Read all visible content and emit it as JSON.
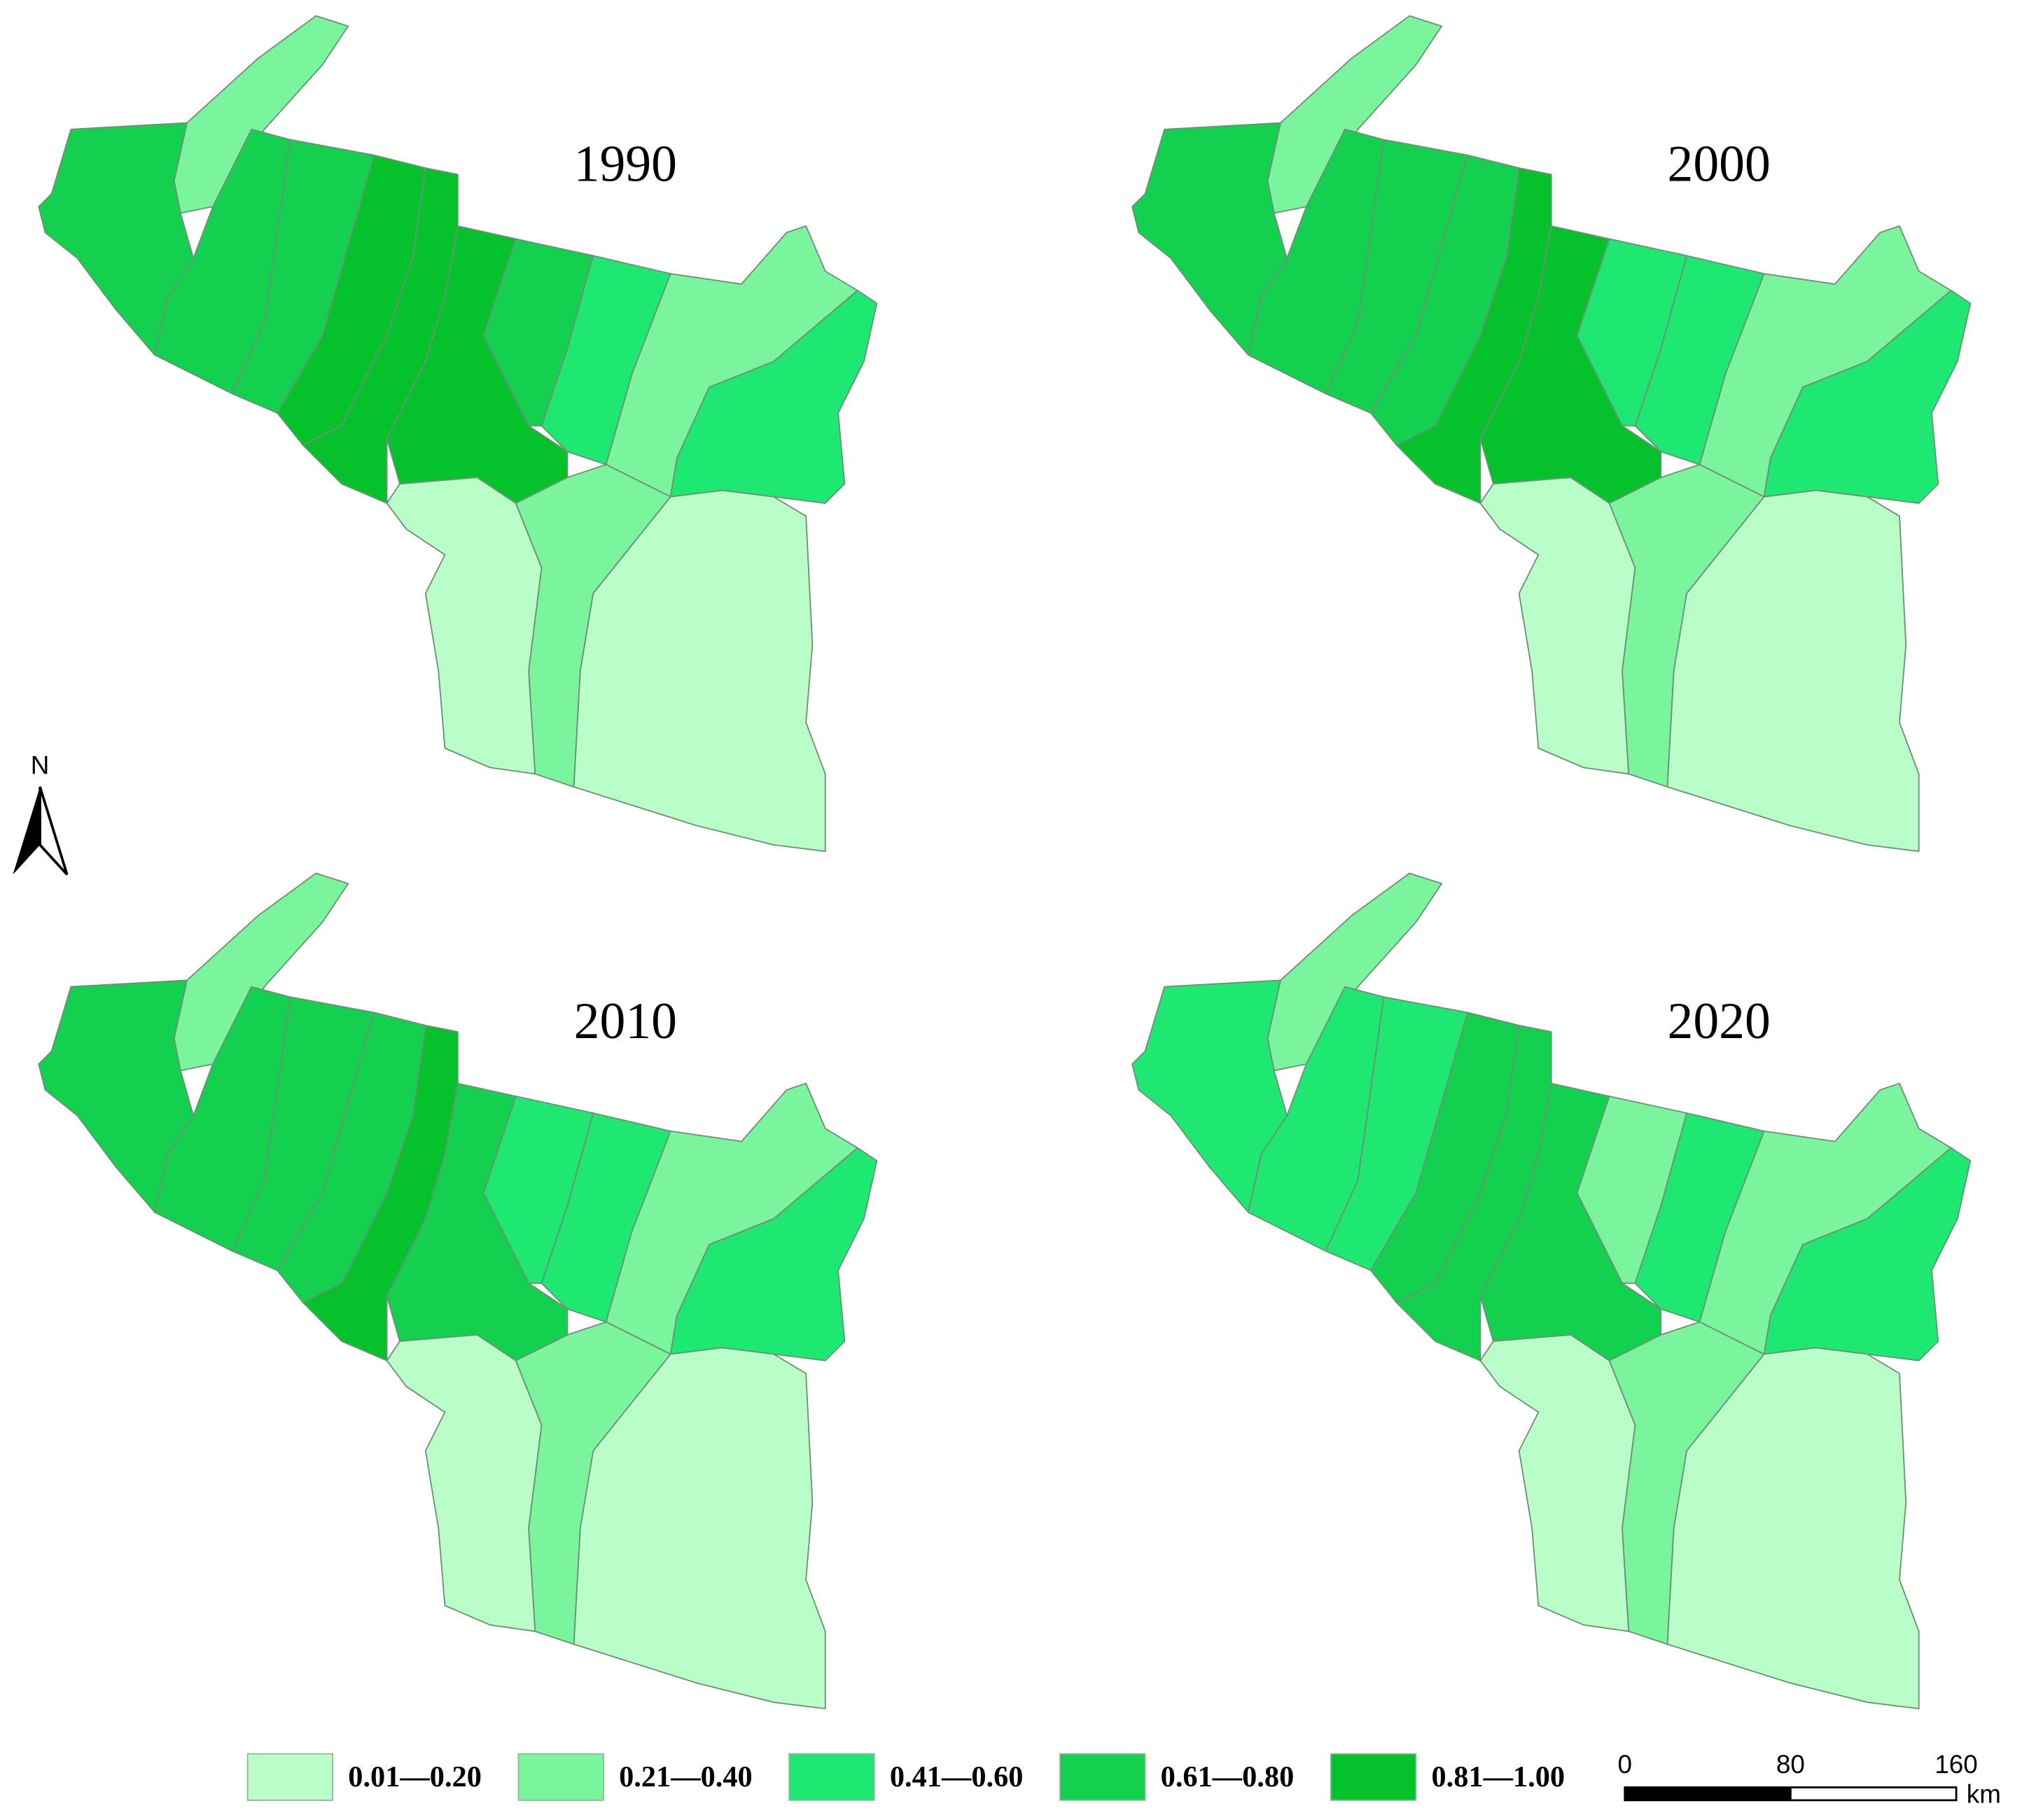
{
  "panels": [
    {
      "title": "1990"
    },
    {
      "title": "2000"
    },
    {
      "title": "2010"
    },
    {
      "title": "2020"
    }
  ],
  "legend": {
    "items": [
      {
        "label": "0.01—0.20",
        "color": "#b9fdc9"
      },
      {
        "label": "0.21—0.40",
        "color": "#7bf59d"
      },
      {
        "label": "0.41—0.60",
        "color": "#1ee872"
      },
      {
        "label": "0.61—0.80",
        "color": "#13d04e"
      },
      {
        "label": "0.81—1.00",
        "color": "#05c22c"
      }
    ]
  },
  "north": "N",
  "scale_bar": {
    "ticks": [
      0,
      80,
      160
    ],
    "unit": "km"
  }
}
